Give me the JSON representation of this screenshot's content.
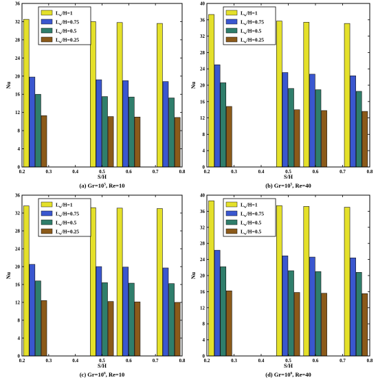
{
  "colors": {
    "series": [
      "#e4e02a",
      "#3a57cf",
      "#2f7e6b",
      "#8b5a1a"
    ],
    "axis": "#000000"
  },
  "chart_data": [
    {
      "type": "bar",
      "caption": "(a) Gr=10",
      "caption_exp": "5",
      "caption_rest": ", Re=10",
      "xlabel": "S/H",
      "ylabel": "Nu",
      "xlim": [
        0.2,
        0.8
      ],
      "ylim": [
        0,
        36
      ],
      "xticks": [
        "0.2",
        "0.3",
        "0.4",
        "0.5",
        "0.6",
        "0.7",
        "0.8"
      ],
      "yticks": [
        "0",
        "4",
        "8",
        "12",
        "16",
        "20",
        "24",
        "28",
        "32",
        "36"
      ],
      "legend_position": "top-left",
      "legend_prefix": "L",
      "legend_sub": "w",
      "x": [
        0.25,
        0.5,
        0.6,
        0.75
      ],
      "series": [
        {
          "name": "/H=1",
          "values": [
            32.5,
            32.0,
            31.8,
            31.6
          ]
        },
        {
          "name": "/H=0.75",
          "values": [
            19.8,
            19.2,
            19.0,
            18.8
          ]
        },
        {
          "name": "/H=0.5",
          "values": [
            16.0,
            15.5,
            15.4,
            15.2
          ]
        },
        {
          "name": "/H=0.25",
          "values": [
            11.3,
            11.1,
            11.0,
            10.9
          ]
        }
      ]
    },
    {
      "type": "bar",
      "caption": "(b) Gr=10",
      "caption_exp": "5",
      "caption_rest": ", Re=40",
      "xlabel": "S/H",
      "ylabel": "Nu",
      "xlim": [
        0.2,
        0.8
      ],
      "ylim": [
        0,
        40
      ],
      "xticks": [
        "0.2",
        "0.3",
        "0.4",
        "0.5",
        "0.6",
        "0.7",
        "0.8"
      ],
      "yticks": [
        "0",
        "4",
        "8",
        "12",
        "16",
        "20",
        "24",
        "28",
        "32",
        "36",
        "40"
      ],
      "legend_position": "top-left",
      "legend_prefix": "L",
      "legend_sub": "w",
      "x": [
        0.25,
        0.5,
        0.6,
        0.75
      ],
      "series": [
        {
          "name": "/H=1",
          "values": [
            37.3,
            35.7,
            35.4,
            35.1
          ]
        },
        {
          "name": "/H=0.75",
          "values": [
            25.0,
            23.1,
            22.7,
            22.3
          ]
        },
        {
          "name": "/H=0.5",
          "values": [
            20.6,
            19.2,
            18.9,
            18.5
          ]
        },
        {
          "name": "/H=0.25",
          "values": [
            14.8,
            14.0,
            13.8,
            13.6
          ]
        }
      ]
    },
    {
      "type": "bar",
      "caption": "(c) Gr=10",
      "caption_exp": "6",
      "caption_rest": ", Re=10",
      "xlabel": "S/H",
      "ylabel": "Nu",
      "xlim": [
        0.2,
        0.8
      ],
      "ylim": [
        0,
        36
      ],
      "xticks": [
        "0.2",
        "0.3",
        "0.4",
        "0.5",
        "0.6",
        "0.7",
        "0.8"
      ],
      "yticks": [
        "0",
        "4",
        "8",
        "12",
        "16",
        "20",
        "24",
        "28",
        "32",
        "36"
      ],
      "legend_position": "top-left",
      "legend_prefix": "L",
      "legend_sub": "w",
      "x": [
        0.25,
        0.5,
        0.6,
        0.75
      ],
      "series": [
        {
          "name": "/H=1",
          "values": [
            33.6,
            33.2,
            33.1,
            33.0
          ]
        },
        {
          "name": "/H=0.75",
          "values": [
            20.5,
            20.0,
            19.9,
            19.7
          ]
        },
        {
          "name": "/H=0.5",
          "values": [
            16.8,
            16.4,
            16.3,
            16.2
          ]
        },
        {
          "name": "/H=0.25",
          "values": [
            12.4,
            12.2,
            12.1,
            12.0
          ]
        }
      ]
    },
    {
      "type": "bar",
      "caption": "(d) Gr=10",
      "caption_exp": "6",
      "caption_rest": ", Re=40",
      "xlabel": "S/H",
      "ylabel": "Nu",
      "xlim": [
        0.2,
        0.8
      ],
      "ylim": [
        0,
        40
      ],
      "xticks": [
        "0.2",
        "0.3",
        "0.4",
        "0.5",
        "0.6",
        "0.7",
        "0.8"
      ],
      "yticks": [
        "0",
        "4",
        "8",
        "12",
        "16",
        "20",
        "24",
        "28",
        "32",
        "36",
        "40"
      ],
      "legend_position": "top-left",
      "legend_prefix": "L",
      "legend_sub": "w",
      "x": [
        0.25,
        0.5,
        0.6,
        0.75
      ],
      "series": [
        {
          "name": "/H=1",
          "values": [
            38.6,
            37.4,
            37.2,
            37.0
          ]
        },
        {
          "name": "/H=0.75",
          "values": [
            26.3,
            24.9,
            24.6,
            24.4
          ]
        },
        {
          "name": "/H=0.5",
          "values": [
            22.2,
            21.2,
            21.0,
            20.8
          ]
        },
        {
          "name": "/H=0.5",
          "values": [
            16.2,
            15.8,
            15.6,
            15.5
          ]
        }
      ]
    }
  ]
}
